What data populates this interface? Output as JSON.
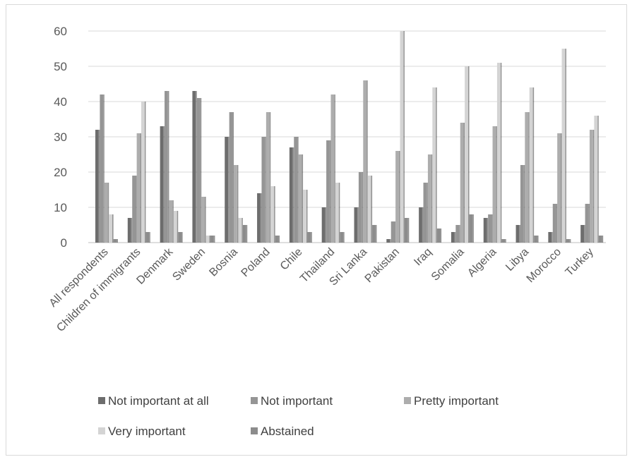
{
  "chart_data": {
    "type": "bar",
    "categories": [
      "All respondents",
      "Children of immigrants",
      "Denmark",
      "Sweden",
      "Bosnia",
      "Poland",
      "Chile",
      "Thailand",
      "Sri Lanka",
      "Pakistan",
      "Iraq",
      "Somalia",
      "Algeria",
      "Libya",
      "Morocco",
      "Turkey"
    ],
    "series": [
      {
        "name": "Not important at all",
        "color": "#6d6d6d",
        "values": [
          32,
          7,
          33,
          43,
          30,
          14,
          27,
          10,
          10,
          1,
          10,
          3,
          7,
          5,
          3,
          5
        ]
      },
      {
        "name": "Not important",
        "color": "#959595",
        "values": [
          42,
          19,
          43,
          41,
          37,
          30,
          30,
          29,
          20,
          6,
          17,
          5,
          8,
          22,
          11,
          11
        ]
      },
      {
        "name": "Pretty important",
        "color": "#adadad",
        "values": [
          17,
          31,
          12,
          13,
          22,
          37,
          25,
          42,
          46,
          26,
          25,
          34,
          33,
          37,
          31,
          32
        ]
      },
      {
        "name": "Very important",
        "color": "#d4d4d4",
        "values": [
          8,
          40,
          9,
          2,
          7,
          16,
          15,
          17,
          19,
          60,
          44,
          50,
          51,
          44,
          55,
          36
        ]
      },
      {
        "name": "Abstained",
        "color": "#8c8c8c",
        "values": [
          1,
          3,
          3,
          2,
          5,
          2,
          3,
          3,
          5,
          7,
          4,
          8,
          1,
          2,
          1,
          2
        ]
      }
    ],
    "ylim": [
      0,
      60
    ],
    "yticks": [
      0,
      10,
      20,
      30,
      40,
      50,
      60
    ],
    "grid": true,
    "legend_position": "bottom"
  }
}
